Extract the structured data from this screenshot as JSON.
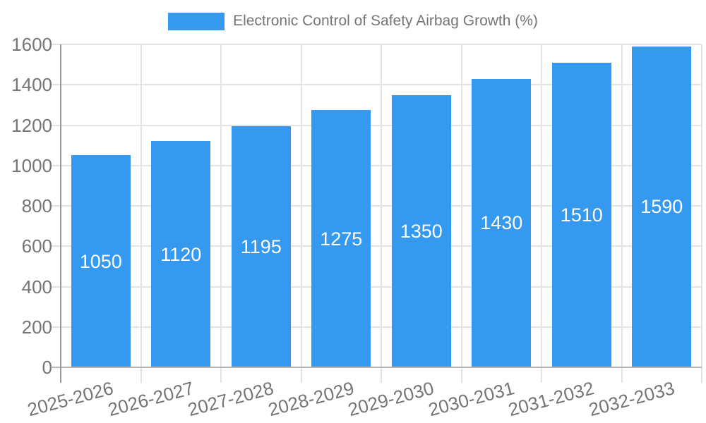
{
  "chart_data": {
    "type": "bar",
    "legend_label": "Electronic Control of Safety Airbag Growth (%)",
    "categories": [
      "2025-2026",
      "2026-2027",
      "2027-2028",
      "2028-2029",
      "2029-2030",
      "2030-2031",
      "2031-2032",
      "2032-2033"
    ],
    "values": [
      1050,
      1120,
      1195,
      1275,
      1350,
      1430,
      1510,
      1590
    ],
    "value_labels": [
      "1050",
      "1120",
      "1195",
      "1275",
      "1350",
      "1430",
      "1510",
      "1590"
    ],
    "y_tick_labels": [
      "0",
      "200",
      "400",
      "600",
      "800",
      "1000",
      "1200",
      "1400",
      "1600"
    ],
    "ylim": [
      0,
      1600
    ],
    "y_tick_step": 200,
    "grid": "on",
    "legend_position": "top-center",
    "xlabel": "",
    "ylabel": "",
    "colors": {
      "bar": "#3699F0",
      "axis_text": "#757575",
      "value_text": "#ffffff",
      "gridline": "#e3e3e3",
      "y_axis_line": "#9a9a9a",
      "x_axis_line": "#b5b5b5"
    }
  }
}
